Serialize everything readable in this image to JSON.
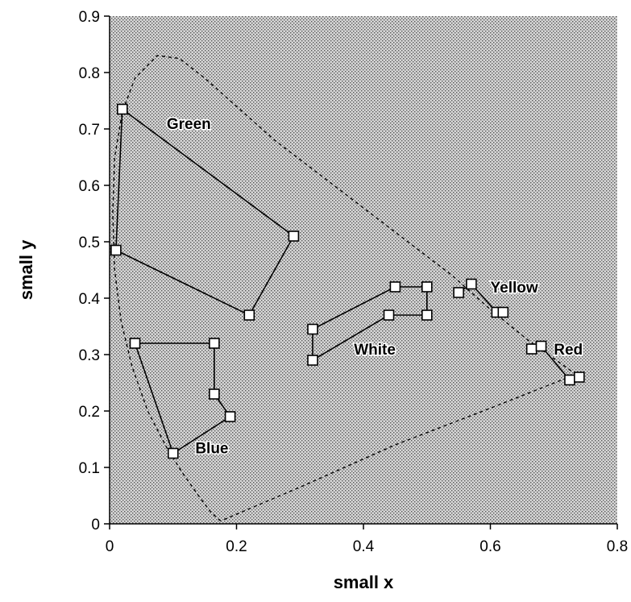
{
  "chart_data": {
    "type": "scatter",
    "title": "",
    "xlabel": "small x",
    "ylabel": "small y",
    "xlim": [
      0,
      0.8
    ],
    "ylim": [
      0,
      0.9
    ],
    "xticks": [
      {
        "value": 0,
        "label": "0"
      },
      {
        "value": 0.2,
        "label": "0.2"
      },
      {
        "value": 0.4,
        "label": "0.4"
      },
      {
        "value": 0.6,
        "label": "0.6"
      },
      {
        "value": 0.8,
        "label": "0.8"
      }
    ],
    "yticks": [
      {
        "value": 0,
        "label": "0"
      },
      {
        "value": 0.1,
        "label": "0.1"
      },
      {
        "value": 0.2,
        "label": "0.2"
      },
      {
        "value": 0.3,
        "label": "0.3"
      },
      {
        "value": 0.4,
        "label": "0.4"
      },
      {
        "value": 0.5,
        "label": "0.5"
      },
      {
        "value": 0.6,
        "label": "0.6"
      },
      {
        "value": 0.7,
        "label": "0.7"
      },
      {
        "value": 0.8,
        "label": "0.8"
      },
      {
        "value": 0.9,
        "label": "0.9"
      }
    ],
    "grid": false,
    "background": "stippled",
    "spectral_locus": {
      "style": "dashed",
      "points": [
        [
          0.175,
          0.005
        ],
        [
          0.16,
          0.02
        ],
        [
          0.14,
          0.05
        ],
        [
          0.115,
          0.09
        ],
        [
          0.09,
          0.135
        ],
        [
          0.06,
          0.2
        ],
        [
          0.035,
          0.28
        ],
        [
          0.018,
          0.36
        ],
        [
          0.008,
          0.45
        ],
        [
          0.005,
          0.55
        ],
        [
          0.008,
          0.65
        ],
        [
          0.02,
          0.73
        ],
        [
          0.04,
          0.79
        ],
        [
          0.075,
          0.83
        ],
        [
          0.11,
          0.825
        ],
        [
          0.15,
          0.79
        ],
        [
          0.2,
          0.74
        ],
        [
          0.26,
          0.68
        ],
        [
          0.33,
          0.62
        ],
        [
          0.4,
          0.56
        ],
        [
          0.47,
          0.5
        ],
        [
          0.54,
          0.44
        ],
        [
          0.6,
          0.38
        ],
        [
          0.66,
          0.325
        ],
        [
          0.71,
          0.285
        ],
        [
          0.735,
          0.265
        ],
        [
          0.6,
          0.205
        ],
        [
          0.45,
          0.14
        ],
        [
          0.3,
          0.065
        ],
        [
          0.175,
          0.005
        ]
      ]
    },
    "series": [
      {
        "name": "Green",
        "closed": true,
        "points": [
          [
            0.02,
            0.735
          ],
          [
            0.29,
            0.51
          ],
          [
            0.22,
            0.37
          ],
          [
            0.01,
            0.485
          ]
        ]
      },
      {
        "name": "Blue",
        "closed": true,
        "points": [
          [
            0.04,
            0.32
          ],
          [
            0.165,
            0.32
          ],
          [
            0.165,
            0.23
          ],
          [
            0.19,
            0.19
          ],
          [
            0.1,
            0.125
          ]
        ]
      },
      {
        "name": "White",
        "closed": true,
        "points": [
          [
            0.32,
            0.345
          ],
          [
            0.45,
            0.42
          ],
          [
            0.5,
            0.42
          ],
          [
            0.5,
            0.37
          ],
          [
            0.44,
            0.37
          ],
          [
            0.32,
            0.29
          ]
        ]
      },
      {
        "name": "Yellow",
        "closed": false,
        "points": [
          [
            0.55,
            0.41
          ],
          [
            0.57,
            0.425
          ],
          [
            0.61,
            0.375
          ],
          [
            0.62,
            0.375
          ]
        ]
      },
      {
        "name": "Red",
        "closed": false,
        "points": [
          [
            0.665,
            0.31
          ],
          [
            0.68,
            0.315
          ],
          [
            0.725,
            0.255
          ],
          [
            0.74,
            0.26
          ]
        ]
      }
    ],
    "annotations": [
      {
        "text": "Green",
        "x": 0.09,
        "y": 0.7
      },
      {
        "text": "Blue",
        "x": 0.135,
        "y": 0.125
      },
      {
        "text": "White",
        "x": 0.385,
        "y": 0.3
      },
      {
        "text": "Yellow",
        "x": 0.6,
        "y": 0.41
      },
      {
        "text": "Red",
        "x": 0.7,
        "y": 0.3
      }
    ]
  }
}
